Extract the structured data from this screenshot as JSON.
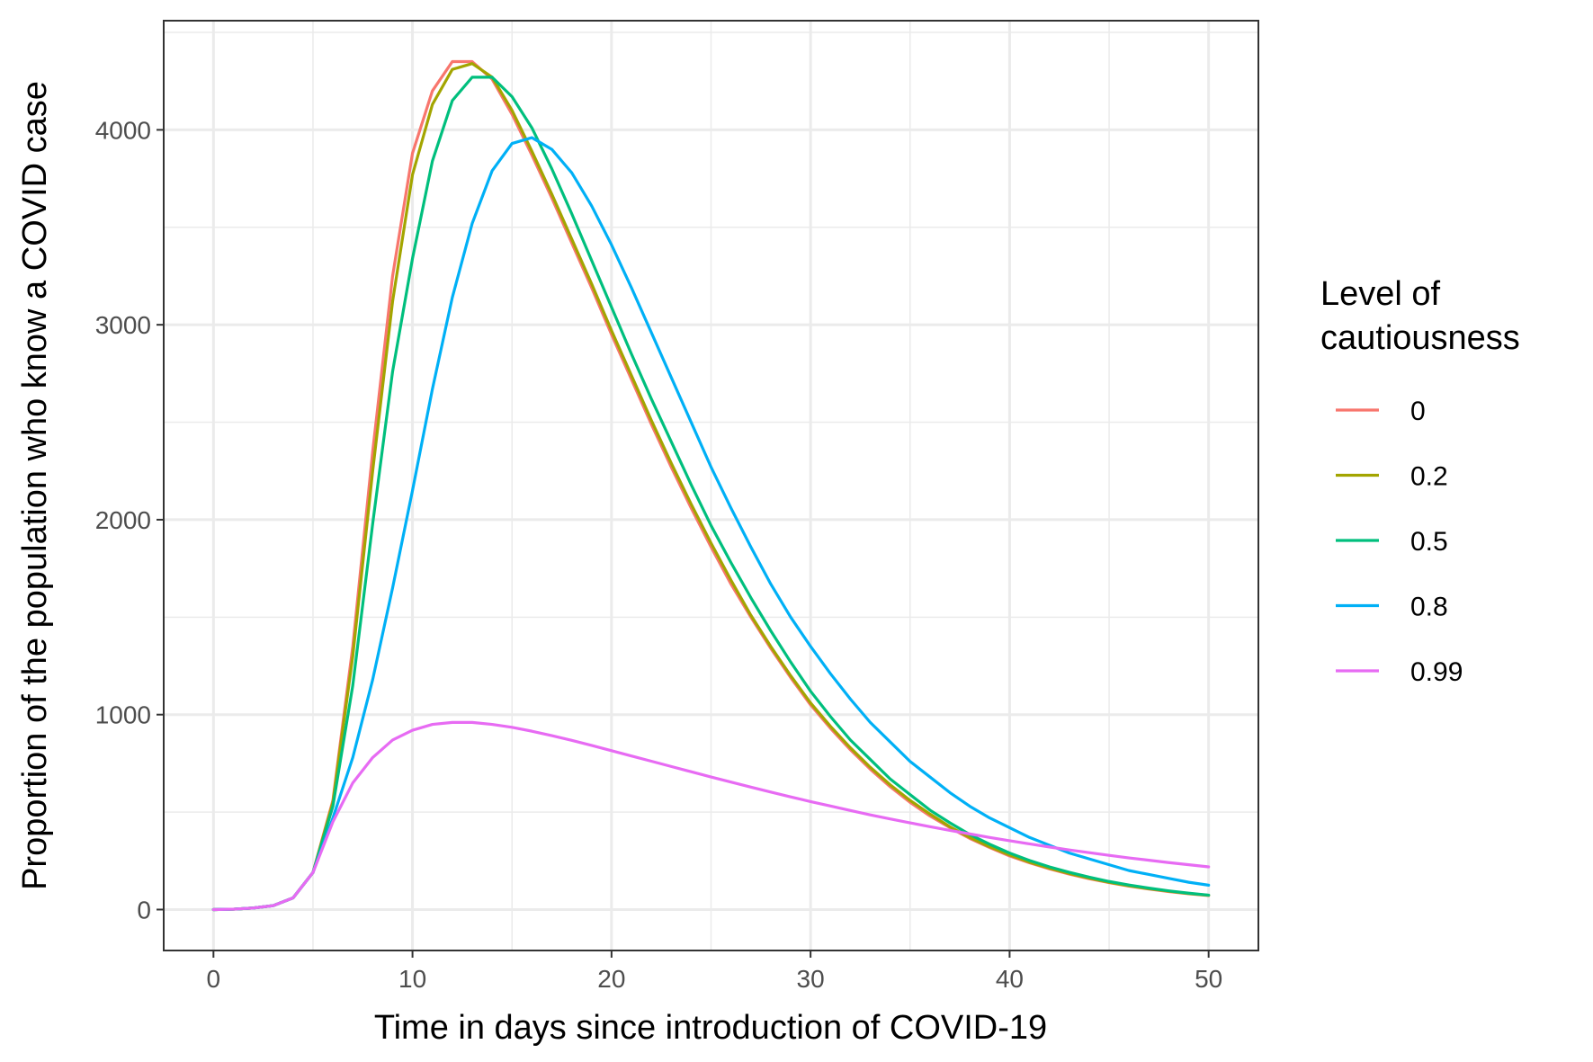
{
  "chart_data": {
    "type": "line",
    "xlabel": "Time in days since introduction of COVID-19",
    "ylabel": "Proportion of the population who know a COVID case",
    "xlim": [
      -2.5,
      52.5
    ],
    "ylim": [
      -210,
      4560
    ],
    "x_ticks": [
      0,
      10,
      20,
      30,
      40,
      50
    ],
    "y_ticks": [
      0,
      1000,
      2000,
      3000,
      4000
    ],
    "grid": true,
    "legend": {
      "title": "Level of\ncautiousness",
      "position": "right"
    },
    "x": [
      0,
      1,
      2,
      3,
      4,
      5,
      6,
      7,
      8,
      9,
      10,
      11,
      12,
      13,
      14,
      15,
      16,
      17,
      18,
      19,
      20,
      21,
      22,
      23,
      24,
      25,
      26,
      27,
      28,
      29,
      30,
      31,
      32,
      33,
      34,
      35,
      36,
      37,
      38,
      39,
      40,
      41,
      42,
      43,
      44,
      45,
      46,
      47,
      48,
      49,
      50
    ],
    "series": [
      {
        "name": "0",
        "color": "#F8766D",
        "values": [
          0,
          2,
          8,
          20,
          60,
          190,
          560,
          1350,
          2350,
          3250,
          3880,
          4200,
          4350,
          4350,
          4260,
          4080,
          3870,
          3650,
          3420,
          3190,
          2950,
          2720,
          2490,
          2270,
          2060,
          1860,
          1670,
          1500,
          1340,
          1190,
          1050,
          930,
          820,
          720,
          630,
          550,
          480,
          420,
          365,
          318,
          275,
          240,
          209,
          182,
          158,
          138,
          120,
          105,
          92,
          81,
          72
        ]
      },
      {
        "name": "0.2",
        "color": "#A3A500",
        "values": [
          0,
          2,
          8,
          20,
          60,
          190,
          550,
          1300,
          2250,
          3120,
          3770,
          4130,
          4310,
          4340,
          4270,
          4100,
          3890,
          3670,
          3440,
          3210,
          2970,
          2740,
          2510,
          2290,
          2080,
          1880,
          1690,
          1510,
          1350,
          1200,
          1060,
          940,
          830,
          730,
          640,
          560,
          490,
          425,
          370,
          322,
          280,
          243,
          212,
          185,
          161,
          140,
          122,
          107,
          94,
          82,
          73
        ]
      },
      {
        "name": "0.5",
        "color": "#00BF7D",
        "values": [
          0,
          2,
          8,
          20,
          60,
          190,
          530,
          1150,
          1980,
          2760,
          3340,
          3840,
          4150,
          4270,
          4270,
          4170,
          4010,
          3800,
          3570,
          3330,
          3090,
          2850,
          2620,
          2400,
          2180,
          1970,
          1780,
          1600,
          1430,
          1270,
          1120,
          990,
          870,
          770,
          670,
          590,
          510,
          445,
          385,
          335,
          290,
          252,
          219,
          191,
          166,
          144,
          126,
          110,
          96,
          84,
          74
        ]
      },
      {
        "name": "0.8",
        "color": "#00B0F6",
        "values": [
          0,
          2,
          8,
          20,
          60,
          190,
          470,
          780,
          1180,
          1650,
          2150,
          2670,
          3140,
          3520,
          3790,
          3930,
          3960,
          3900,
          3780,
          3610,
          3410,
          3190,
          2960,
          2730,
          2500,
          2270,
          2060,
          1860,
          1670,
          1500,
          1350,
          1210,
          1080,
          960,
          860,
          760,
          680,
          600,
          530,
          470,
          420,
          370,
          330,
          290,
          260,
          230,
          200,
          180,
          160,
          140,
          125
        ]
      },
      {
        "name": "0.99",
        "color": "#E76BF3",
        "values": [
          0,
          2,
          8,
          20,
          60,
          190,
          450,
          650,
          780,
          870,
          920,
          950,
          960,
          960,
          950,
          935,
          915,
          892,
          868,
          842,
          815,
          788,
          761,
          734,
          707,
          680,
          654,
          628,
          603,
          578,
          554,
          531,
          508,
          486,
          465,
          445,
          425,
          406,
          388,
          370,
          353,
          337,
          321,
          306,
          292,
          278,
          265,
          253,
          241,
          230,
          219
        ]
      }
    ]
  }
}
